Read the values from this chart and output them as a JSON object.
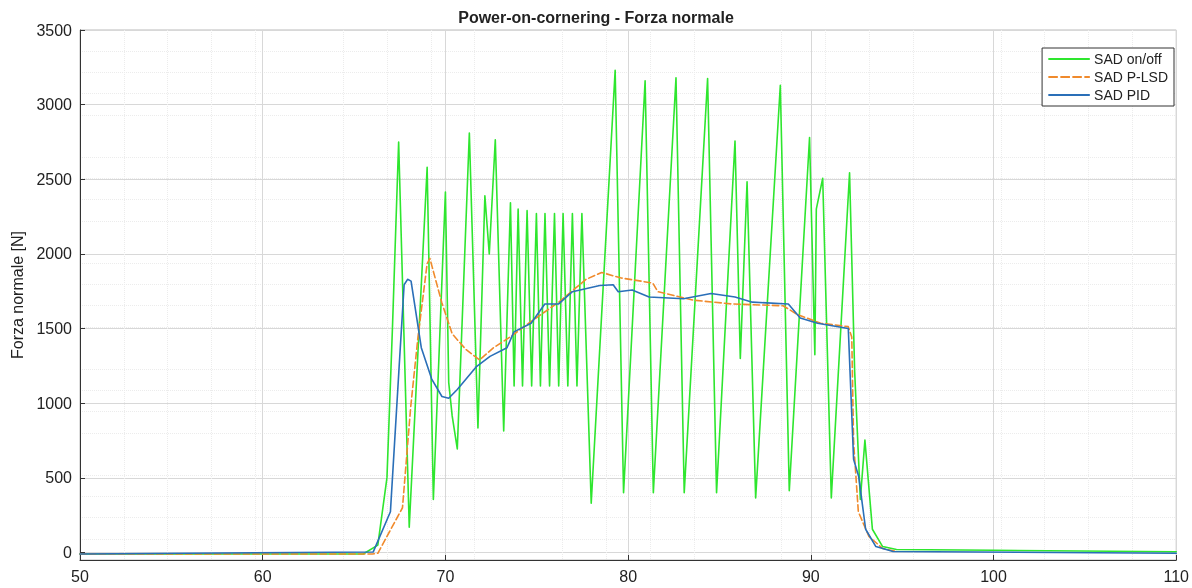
{
  "chart_data": {
    "type": "line",
    "title": "Power-on-cornering - Forza normale",
    "ylabel": "Forza normale [N]",
    "xlim": [
      50,
      110
    ],
    "xticks": [
      50,
      60,
      70,
      80,
      90,
      100,
      110
    ],
    "ylim": [
      -50,
      3500
    ],
    "yticks": [
      0,
      500,
      1000,
      1500,
      2000,
      2500,
      3000,
      3500
    ],
    "grid": true,
    "legend": "top right",
    "marker": "none",
    "series": [
      {
        "name": "SAD on/off",
        "color": "#2ee62e",
        "line_style": "solid",
        "x": [
          50,
          65.5,
          66.3,
          66.8,
          67.1,
          67.44,
          68.02,
          69.0,
          69.34,
          70.0,
          70.18,
          70.37,
          70.65,
          71.31,
          71.78,
          72.16,
          72.4,
          72.73,
          73.19,
          73.56,
          73.76,
          73.98,
          74.22,
          74.47,
          74.72,
          74.98,
          75.2,
          75.45,
          75.7,
          75.97,
          76.2,
          76.44,
          76.7,
          76.95,
          77.2,
          77.47,
          77.98,
          79.29,
          79.75,
          80.93,
          81.38,
          82.62,
          83.07,
          84.35,
          84.84,
          85.85,
          86.14,
          86.51,
          86.98,
          88.33,
          88.82,
          89.93,
          90.22,
          90.3,
          90.65,
          91.12,
          92.12,
          92.4,
          92.71,
          92.96,
          93.37,
          93.93,
          94.69,
          100,
          110
        ],
        "values": [
          -10,
          -10,
          50,
          500,
          1500,
          2750,
          170,
          2580,
          355,
          2415,
          1140,
          915,
          694,
          2810,
          834,
          2390,
          2000,
          2765,
          814,
          2343,
          1115,
          2300,
          1115,
          2290,
          1115,
          2270,
          1115,
          2270,
          1115,
          2270,
          1115,
          2270,
          1115,
          2270,
          1115,
          2270,
          330,
          3230,
          400,
          3160,
          400,
          3180,
          400,
          3175,
          400,
          2757,
          1300,
          2483,
          366,
          3130,
          414,
          2780,
          1325,
          2300,
          2507,
          366,
          2544,
          1210,
          355,
          753,
          156,
          40,
          20,
          15,
          5
        ]
      },
      {
        "name": "SAD P-LSD",
        "color": "#f08a2c",
        "line_style": "dashed",
        "x": [
          50,
          66,
          66.3,
          67.65,
          68.1,
          68.5,
          69.0,
          69.15,
          69.8,
          70.37,
          71.12,
          71.87,
          72.63,
          73.56,
          74.69,
          76.2,
          77.7,
          78.55,
          79.58,
          81.35,
          81.63,
          83.6,
          85.67,
          88.48,
          89.25,
          90.54,
          92.05,
          92.24,
          92.34,
          92.6,
          93.18,
          93.93,
          94.69
        ],
        "values": [
          -10,
          -10,
          -5,
          300,
          975,
          1445,
          1935,
          1970,
          1675,
          1465,
          1360,
          1290,
          1372,
          1445,
          1548,
          1677,
          1830,
          1876,
          1840,
          1805,
          1747,
          1690,
          1665,
          1653,
          1595,
          1536,
          1513,
          1443,
          741,
          273,
          108,
          27,
          7
        ]
      },
      {
        "name": "SAD PID",
        "color": "#2a6fb8",
        "line_style": "solid",
        "x": [
          50,
          66.05,
          66.99,
          67.45,
          67.74,
          67.93,
          68.12,
          68.68,
          69.25,
          69.81,
          70.18,
          70.65,
          71.68,
          72.44,
          73.37,
          73.75,
          74.69,
          75.44,
          76.2,
          76.95,
          78.45,
          79.18,
          79.46,
          80.22,
          81.15,
          83.03,
          84.54,
          85.85,
          86.8,
          88.77,
          89.42,
          90.37,
          92.05,
          92.34,
          92.62,
          93.0,
          93.56,
          94.5,
          110
        ],
        "values": [
          -10,
          4,
          273,
          1209,
          1794,
          1830,
          1818,
          1372,
          1162,
          1045,
          1033,
          1092,
          1243,
          1314,
          1372,
          1478,
          1536,
          1665,
          1665,
          1747,
          1789,
          1794,
          1747,
          1759,
          1712,
          1700,
          1735,
          1712,
          1677,
          1665,
          1571,
          1536,
          1501,
          624,
          509,
          156,
          40,
          7,
          -5
        ]
      }
    ]
  }
}
